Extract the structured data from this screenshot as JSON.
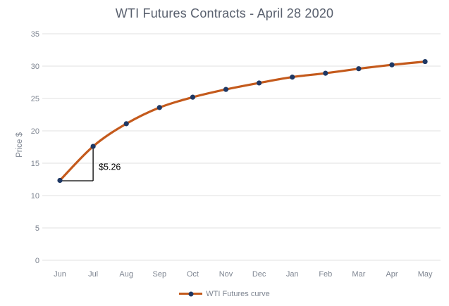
{
  "chart_data": {
    "type": "line",
    "title": "WTI Futures Contracts - April 28 2020",
    "xlabel": "",
    "ylabel": "Price $",
    "categories": [
      "Jun",
      "Jul",
      "Aug",
      "Sep",
      "Oct",
      "Nov",
      "Dec",
      "Jan",
      "Feb",
      "Mar",
      "Apr",
      "May"
    ],
    "series": [
      {
        "name": "WTI Futures curve",
        "values": [
          12.34,
          17.6,
          21.1,
          23.6,
          25.2,
          26.4,
          27.4,
          28.3,
          28.9,
          29.6,
          30.2,
          30.7
        ],
        "line_color": "#C45A1C",
        "marker_color": "#1F3864",
        "smooth": true
      }
    ],
    "ylim": [
      0,
      35
    ],
    "yticks": [
      0,
      5,
      10,
      15,
      20,
      25,
      30,
      35
    ],
    "grid": "horizontal",
    "gridline_color": "#E2E2E2",
    "legend_position": "bottom",
    "annotations": [
      {
        "text": "$5.26",
        "type": "difference-bracket",
        "from_category": "Jun",
        "to_category": "Jul",
        "color": "#000000"
      }
    ]
  },
  "style": {
    "title_color": "#59606E",
    "axis_label_color": "#7E8591",
    "background": "#FFFFFF"
  }
}
